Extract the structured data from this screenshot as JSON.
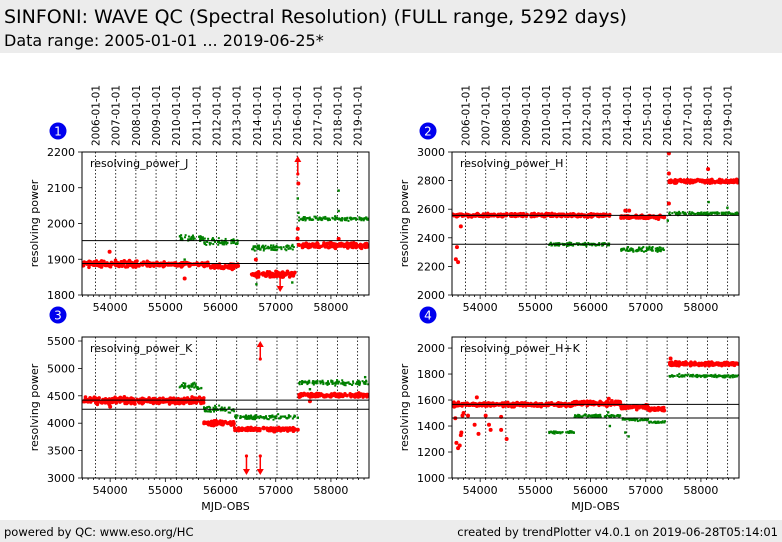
{
  "header": {
    "title": "SINFONI: WAVE QC (Spectral Resolution) (FULL range, 5292 days)",
    "subtitle": "Data range: 2005-01-01 ... 2019-06-25*"
  },
  "footer": {
    "left": "powered by QC: www.eso.org/HC",
    "right": "created by trendPlotter v4.0.1 on 2019-06-28T05:14:01"
  },
  "colors": {
    "series_a": "#ff0000",
    "series_b": "#008000",
    "badge": "#0000ee",
    "grid": "#000000",
    "header_bg": "#ececec"
  },
  "chart_data": [
    {
      "type": "scatter",
      "panel_number": "1",
      "label": "resolving_power_J",
      "xlabel": "",
      "ylabel": "resolving power",
      "xlim": [
        53490,
        58690
      ],
      "ylim": [
        1800,
        2200
      ],
      "x_ticks": [
        54000,
        55000,
        56000,
        57000,
        58000
      ],
      "x_tick_labels": [
        "54000",
        "55000",
        "56000",
        "57000",
        "58000"
      ],
      "y_ticks": [
        1800,
        1900,
        2000,
        2100,
        2200
      ],
      "y_tick_labels": [
        "1800",
        "1900",
        "2000",
        "2100",
        "2200"
      ],
      "date_lines": [
        53736,
        54101,
        54466,
        54832,
        55197,
        55562,
        55927,
        56293,
        56658,
        57023,
        57388,
        57754,
        58119,
        58484
      ],
      "date_labels": [
        "2006-01-01",
        "2007-01-01",
        "2008-01-01",
        "2009-01-01",
        "2010-01-01",
        "2011-01-01",
        "2012-01-01",
        "2013-01-01",
        "2014-01-01",
        "2015-01-01",
        "2016-01-01",
        "2017-01-01",
        "2018-01-01",
        "2019-01-01"
      ],
      "hlines": [
        1952,
        1888
      ],
      "series": [
        {
          "name": "red",
          "color": "#ff0000",
          "segments": [
            {
              "x": [
                53500,
                54700
              ],
              "y": 1887,
              "spread": 6
            },
            {
              "x": [
                54700,
                55800
              ],
              "y": 1886,
              "spread": 4
            },
            {
              "x": [
                55800,
                56330
              ],
              "y": 1880,
              "spread": 5
            },
            {
              "x": [
                56550,
                57350
              ],
              "y": 1858,
              "spread": 5
            },
            {
              "x": [
                57410,
                58680
              ],
              "y": 1938,
              "spread": 5
            }
          ],
          "outliers": [
            [
              53990,
              1921
            ],
            [
              55350,
              1846
            ],
            [
              56640,
              1899
            ],
            [
              57400,
              1985
            ],
            [
              57410,
              2112
            ],
            [
              57395,
              1958
            ],
            [
              58140,
              1957
            ]
          ],
          "arrows": [
            [
              57400,
              "up"
            ],
            [
              57080,
              "down"
            ]
          ]
        },
        {
          "name": "green",
          "color": "#008000",
          "segments": [
            {
              "x": [
                55250,
                55700
              ],
              "y": 1958,
              "spread": 6
            },
            {
              "x": [
                55700,
                56330
              ],
              "y": 1948,
              "spread": 8
            },
            {
              "x": [
                56550,
                57350
              ],
              "y": 1932,
              "spread": 6
            },
            {
              "x": [
                57420,
                58680
              ],
              "y": 2013,
              "spread": 4
            }
          ],
          "outliers": [
            [
              55350,
              1899
            ],
            [
              56650,
              1830
            ],
            [
              57300,
              1835
            ],
            [
              57400,
              2070
            ],
            [
              57410,
              2030
            ],
            [
              58140,
              2092
            ],
            [
              58140,
              2035
            ]
          ]
        }
      ]
    },
    {
      "type": "scatter",
      "panel_number": "2",
      "label": "resolving_power_H",
      "xlabel": "",
      "ylabel": "resolving power",
      "xlim": [
        53490,
        58690
      ],
      "ylim": [
        2000,
        3000
      ],
      "x_ticks": [
        54000,
        55000,
        56000,
        57000,
        58000
      ],
      "x_tick_labels": [
        "54000",
        "55000",
        "56000",
        "57000",
        "58000"
      ],
      "y_ticks": [
        2000,
        2200,
        2400,
        2600,
        2800,
        3000
      ],
      "y_tick_labels": [
        "2000",
        "2200",
        "2400",
        "2600",
        "2800",
        "3000"
      ],
      "date_lines": [
        53736,
        54101,
        54466,
        54832,
        55197,
        55562,
        55927,
        56293,
        56658,
        57023,
        57388,
        57754,
        58119,
        58484
      ],
      "date_labels": [
        "2006-01-01",
        "2007-01-01",
        "2008-01-01",
        "2009-01-01",
        "2010-01-01",
        "2011-01-01",
        "2012-01-01",
        "2013-01-01",
        "2014-01-01",
        "2015-01-01",
        "2016-01-01",
        "2017-01-01",
        "2018-01-01",
        "2019-01-01"
      ],
      "hlines": [
        2557,
        2355
      ],
      "series": [
        {
          "name": "red",
          "color": "#ff0000",
          "segments": [
            {
              "x": [
                53500,
                56350
              ],
              "y": 2558,
              "spread": 8
            },
            {
              "x": [
                56550,
                57350
              ],
              "y": 2545,
              "spread": 8
            },
            {
              "x": [
                57420,
                58680
              ],
              "y": 2795,
              "spread": 8
            }
          ],
          "outliers": [
            [
              53560,
              2250
            ],
            [
              53600,
              2230
            ],
            [
              53580,
              2335
            ],
            [
              53650,
              2480
            ],
            [
              57420,
              2990
            ],
            [
              57420,
              2850
            ],
            [
              57420,
              2640
            ],
            [
              58130,
              2880
            ],
            [
              56630,
              2590
            ],
            [
              56700,
              2590
            ]
          ],
          "arrows": []
        },
        {
          "name": "green",
          "color": "#008000",
          "segments": [
            {
              "x": [
                55250,
                56350
              ],
              "y": 2355,
              "spread": 8
            },
            {
              "x": [
                56550,
                57350
              ],
              "y": 2320,
              "spread": 12
            },
            {
              "x": [
                57420,
                58680
              ],
              "y": 2570,
              "spread": 8
            }
          ],
          "outliers": [
            [
              57400,
              2520
            ],
            [
              58140,
              2650
            ],
            [
              58480,
              2610
            ]
          ]
        }
      ]
    },
    {
      "type": "scatter",
      "panel_number": "3",
      "label": "resolving_power_K",
      "xlabel": "MJD-OBS",
      "ylabel": "resolving power",
      "xlim": [
        53490,
        58690
      ],
      "ylim": [
        3000,
        5573
      ],
      "x_ticks": [
        54000,
        55000,
        56000,
        57000,
        58000
      ],
      "x_tick_labels": [
        "54000",
        "55000",
        "56000",
        "57000",
        "58000"
      ],
      "y_ticks": [
        3000,
        3500,
        4000,
        4500,
        5000,
        5500
      ],
      "y_tick_labels": [
        "3000",
        "3500",
        "4000",
        "4500",
        "5000",
        "5500"
      ],
      "date_lines": [
        53736,
        54101,
        54466,
        54832,
        55197,
        55562,
        55927,
        56293,
        56658,
        57023,
        57388,
        57754,
        58119,
        58484
      ],
      "hlines": [
        4420,
        4255
      ],
      "series": [
        {
          "name": "red",
          "color": "#ff0000",
          "segments": [
            {
              "x": [
                53500,
                55700
              ],
              "y": 4410,
              "spread": 40
            },
            {
              "x": [
                55700,
                56250
              ],
              "y": 4000,
              "spread": 30
            },
            {
              "x": [
                56250,
                57350
              ],
              "y": 3890,
              "spread": 25
            },
            {
              "x": [
                57420,
                58680
              ],
              "y": 4510,
              "spread": 25
            }
          ],
          "outliers": [
            [
              54000,
              4300
            ],
            [
              57620,
              4400
            ],
            [
              57400,
              3880
            ]
          ],
          "arrows": [
            [
              56720,
              "up"
            ],
            [
              56470,
              "down"
            ],
            [
              56720,
              "down"
            ]
          ]
        },
        {
          "name": "green",
          "color": "#008000",
          "segments": [
            {
              "x": [
                55250,
                55700
              ],
              "y": 4680,
              "spread": 40
            },
            {
              "x": [
                55700,
                56250
              ],
              "y": 4250,
              "spread": 40
            },
            {
              "x": [
                56250,
                57350
              ],
              "y": 4110,
              "spread": 30
            },
            {
              "x": [
                57420,
                58680
              ],
              "y": 4740,
              "spread": 30
            }
          ],
          "outliers": [
            [
              57400,
              4100
            ],
            [
              57620,
              4620
            ],
            [
              58620,
              4840
            ]
          ]
        }
      ]
    },
    {
      "type": "scatter",
      "panel_number": "4",
      "label": "resolving_power_H+K",
      "xlabel": "MJD-OBS",
      "ylabel": "resolving power",
      "xlim": [
        53490,
        58690
      ],
      "ylim": [
        1000,
        2085
      ],
      "x_ticks": [
        54000,
        55000,
        56000,
        57000,
        58000
      ],
      "x_tick_labels": [
        "54000",
        "55000",
        "56000",
        "57000",
        "58000"
      ],
      "y_ticks": [
        1000,
        1200,
        1400,
        1600,
        1800,
        2000
      ],
      "y_tick_labels": [
        "1000",
        "1200",
        "1400",
        "1600",
        "1800",
        "2000"
      ],
      "date_lines": [
        53736,
        54101,
        54466,
        54832,
        55197,
        55562,
        55927,
        56293,
        56658,
        57023,
        57388,
        57754,
        58119,
        58484
      ],
      "hlines": [
        1567,
        1462
      ],
      "series": [
        {
          "name": "red",
          "color": "#ff0000",
          "segments": [
            {
              "x": [
                53500,
                55700
              ],
              "y": 1565,
              "spread": 10
            },
            {
              "x": [
                55700,
                56550
              ],
              "y": 1575,
              "spread": 12
            },
            {
              "x": [
                56550,
                57050
              ],
              "y": 1545,
              "spread": 10
            },
            {
              "x": [
                57050,
                57350
              ],
              "y": 1530,
              "spread": 10
            },
            {
              "x": [
                57420,
                58680
              ],
              "y": 1878,
              "spread": 10
            }
          ],
          "outliers": [
            [
              53550,
              1460
            ],
            [
              53570,
              1270
            ],
            [
              53600,
              1230
            ],
            [
              53630,
              1250
            ],
            [
              53650,
              1330
            ],
            [
              53660,
              1350
            ],
            [
              53680,
              1480
            ],
            [
              53700,
              1500
            ],
            [
              53780,
              1480
            ],
            [
              53900,
              1410
            ],
            [
              53940,
              1620
            ],
            [
              53970,
              1340
            ],
            [
              54100,
              1480
            ],
            [
              54160,
              1410
            ],
            [
              54190,
              1370
            ],
            [
              54380,
              1470
            ],
            [
              54380,
              1370
            ],
            [
              54480,
              1300
            ],
            [
              56330,
              1610
            ],
            [
              57450,
              1920
            ]
          ],
          "arrows": []
        },
        {
          "name": "green",
          "color": "#008000",
          "segments": [
            {
              "x": [
                55250,
                55700
              ],
              "y": 1350,
              "spread": 6
            },
            {
              "x": [
                55700,
                56550
              ],
              "y": 1478,
              "spread": 8
            },
            {
              "x": [
                56550,
                57050
              ],
              "y": 1452,
              "spread": 8
            },
            {
              "x": [
                57050,
                57350
              ],
              "y": 1430,
              "spread": 6
            },
            {
              "x": [
                57420,
                58680
              ],
              "y": 1785,
              "spread": 8
            }
          ],
          "outliers": [
            [
              56350,
              1400
            ],
            [
              56320,
              1505
            ],
            [
              56630,
              1350
            ],
            [
              56690,
              1320
            ]
          ]
        }
      ]
    }
  ]
}
